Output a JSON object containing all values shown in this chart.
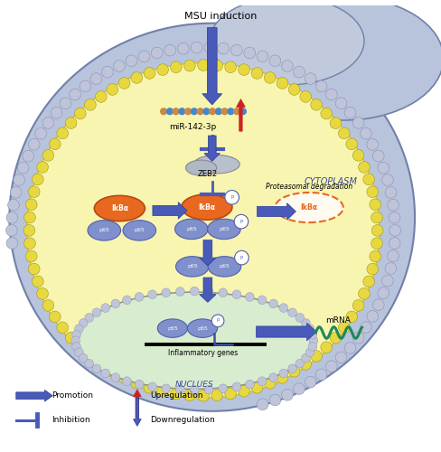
{
  "bg_color": "#ffffff",
  "outer_cell_color": "#b8c4dc",
  "outer_cell_edge": "#7888b0",
  "inner_cell_color": "#f8f5b0",
  "inner_cell_edge": "#d8c830",
  "nucleus_color": "#d8ecd0",
  "nucleus_edge": "#a0a888",
  "dot_yellow": "#e8d840",
  "dot_yellow_edge": "#a09820",
  "dot_gray": "#c0c4d8",
  "dot_gray_edge": "#8890b8",
  "blue": "#4a5ab8",
  "blue_edge": "#2a3a98",
  "blue_light": "#8090cc",
  "blue_light_edge": "#5060aa",
  "red": "#cc2222",
  "orange": "#e86820",
  "orange_edge": "#b84810",
  "green": "#208858",
  "title": "MSU induction",
  "cytoplasm_label": "CYTOPLASM",
  "nucleus_label": "NUCLUES",
  "miR_label": "miR-142-3p",
  "ZEB2_label": "ZEB2",
  "IkBa_label": "IkBα",
  "p65_label": "p65",
  "P_label": "P",
  "inflammatory_label": "Inflammatory genes",
  "proteasomal_label": "Proteasomal degradation",
  "mRNA_label": "mRNA",
  "legend_promotion": "Promotion",
  "legend_inhibition": "Inhibition",
  "legend_upregulation": "Upregulation",
  "legend_downregulation": "Downregulation"
}
